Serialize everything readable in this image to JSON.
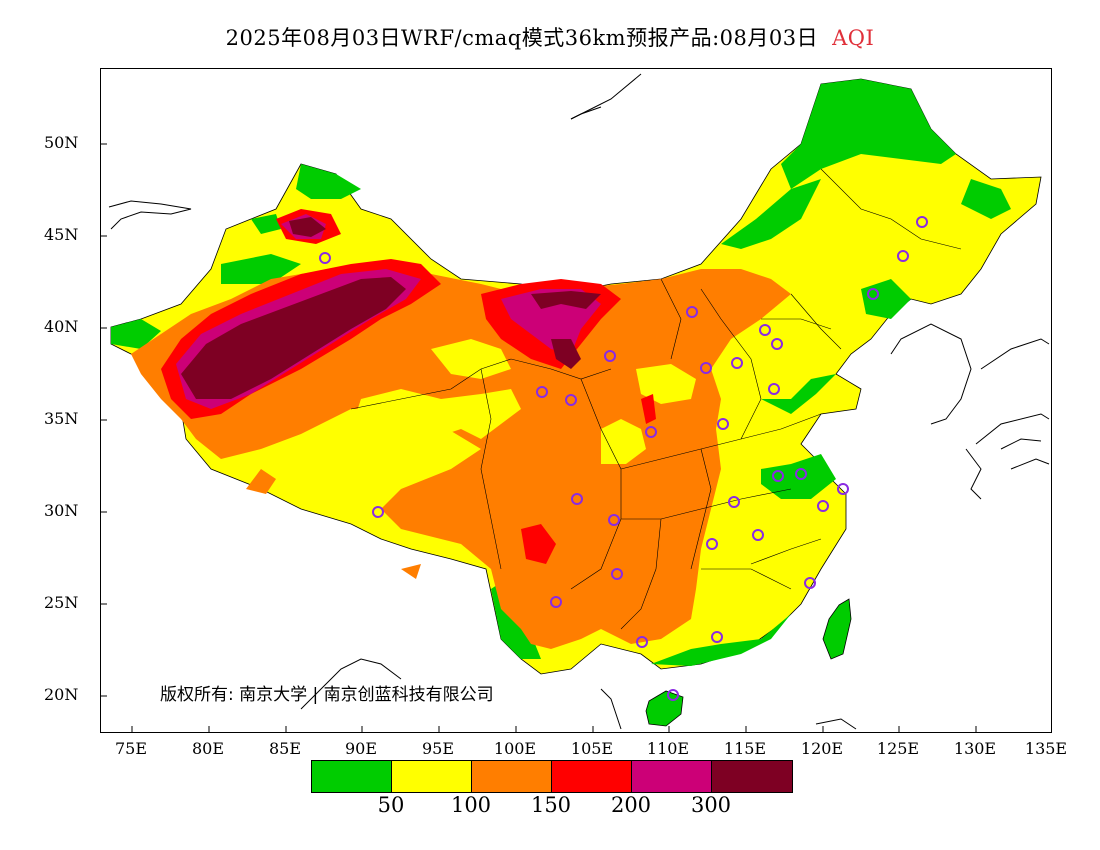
{
  "title": {
    "main": "2025年08月03日WRF/cmaq模式36km预报产品:08月03日",
    "variable": "AQI"
  },
  "axes": {
    "lat_labels": [
      "50N",
      "45N",
      "40N",
      "35N",
      "30N",
      "25N",
      "20N"
    ],
    "lon_labels": [
      "75E",
      "80E",
      "85E",
      "90E",
      "95E",
      "100E",
      "105E",
      "110E",
      "115E",
      "120E",
      "125E",
      "130E",
      "135E"
    ]
  },
  "copyright": "版权所有: 南京大学 | 南京创蓝科技有限公司",
  "legend": {
    "colors": [
      "#00cc00",
      "#ffff00",
      "#ff7e00",
      "#ff0000",
      "#cc0077",
      "#7e0023"
    ],
    "labels": [
      "50",
      "100",
      "150",
      "200",
      "300"
    ]
  }
}
